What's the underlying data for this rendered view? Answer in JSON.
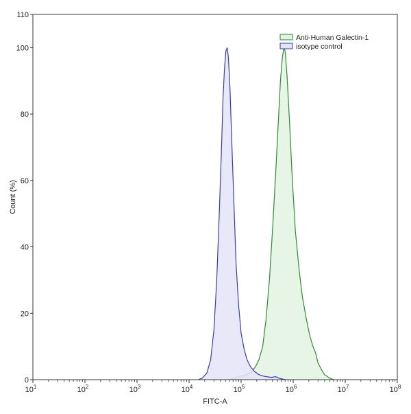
{
  "chart_data": {
    "type": "area",
    "title": "",
    "xlabel": "FITC-A",
    "ylabel": "Count (%)",
    "xscale": "log",
    "xlim": [
      10,
      100000000
    ],
    "ylim": [
      0,
      110
    ],
    "grid": false,
    "legend_placement": "top-right",
    "x_ticks": [
      {
        "value": 10,
        "base": "10",
        "exp": "1"
      },
      {
        "value": 100,
        "base": "10",
        "exp": "2"
      },
      {
        "value": 1000,
        "base": "10",
        "exp": "3"
      },
      {
        "value": 10000,
        "base": "10",
        "exp": "4"
      },
      {
        "value": 100000,
        "base": "10",
        "exp": "5"
      },
      {
        "value": 1000000,
        "base": "10",
        "exp": "6"
      },
      {
        "value": 10000000,
        "base": "10",
        "exp": "7"
      },
      {
        "value": 100000000,
        "base": "10",
        "exp": "8"
      }
    ],
    "y_ticks": [
      0,
      20,
      40,
      60,
      80,
      100,
      110
    ],
    "series": [
      {
        "name": "Anti-Human Galectin-1",
        "stroke": "#2e8b2e",
        "fill": "#e3f3e3",
        "points": [
          [
            60000,
            0
          ],
          [
            75000,
            0.5
          ],
          [
            90000,
            1
          ],
          [
            110000,
            1.2
          ],
          [
            130000,
            1.5
          ],
          [
            160000,
            2.5
          ],
          [
            190000,
            4
          ],
          [
            220000,
            6
          ],
          [
            260000,
            10
          ],
          [
            300000,
            18
          ],
          [
            350000,
            30
          ],
          [
            400000,
            45
          ],
          [
            460000,
            62
          ],
          [
            520000,
            78
          ],
          [
            570000,
            90
          ],
          [
            620000,
            97
          ],
          [
            660000,
            100
          ],
          [
            700000,
            99
          ],
          [
            760000,
            92
          ],
          [
            850000,
            78
          ],
          [
            950000,
            62
          ],
          [
            1100000,
            45
          ],
          [
            1300000,
            33
          ],
          [
            1500000,
            25
          ],
          [
            1800000,
            18
          ],
          [
            2100000,
            13
          ],
          [
            2400000,
            10
          ],
          [
            2700000,
            8
          ],
          [
            3000000,
            5
          ],
          [
            3500000,
            3
          ],
          [
            4000000,
            1.5
          ],
          [
            5000000,
            0.5
          ],
          [
            6000000,
            0
          ]
        ]
      },
      {
        "name": "isotype control",
        "stroke": "#3a3ab8",
        "fill": "#e4e4f8",
        "points": [
          [
            15000,
            0
          ],
          [
            18000,
            0.5
          ],
          [
            22000,
            2
          ],
          [
            26000,
            6
          ],
          [
            30000,
            15
          ],
          [
            34000,
            30
          ],
          [
            38000,
            50
          ],
          [
            42000,
            70
          ],
          [
            45000,
            85
          ],
          [
            48000,
            94
          ],
          [
            51000,
            99
          ],
          [
            54000,
            100
          ],
          [
            57000,
            97
          ],
          [
            61000,
            88
          ],
          [
            66000,
            72
          ],
          [
            72000,
            55
          ],
          [
            80000,
            35
          ],
          [
            90000,
            22
          ],
          [
            100000,
            14
          ],
          [
            115000,
            9
          ],
          [
            130000,
            6
          ],
          [
            150000,
            4
          ],
          [
            180000,
            2.5
          ],
          [
            220000,
            1.5
          ],
          [
            280000,
            1
          ],
          [
            380000,
            0.7
          ],
          [
            460000,
            0.9
          ],
          [
            550000,
            0.4
          ],
          [
            700000,
            0
          ]
        ]
      }
    ]
  }
}
